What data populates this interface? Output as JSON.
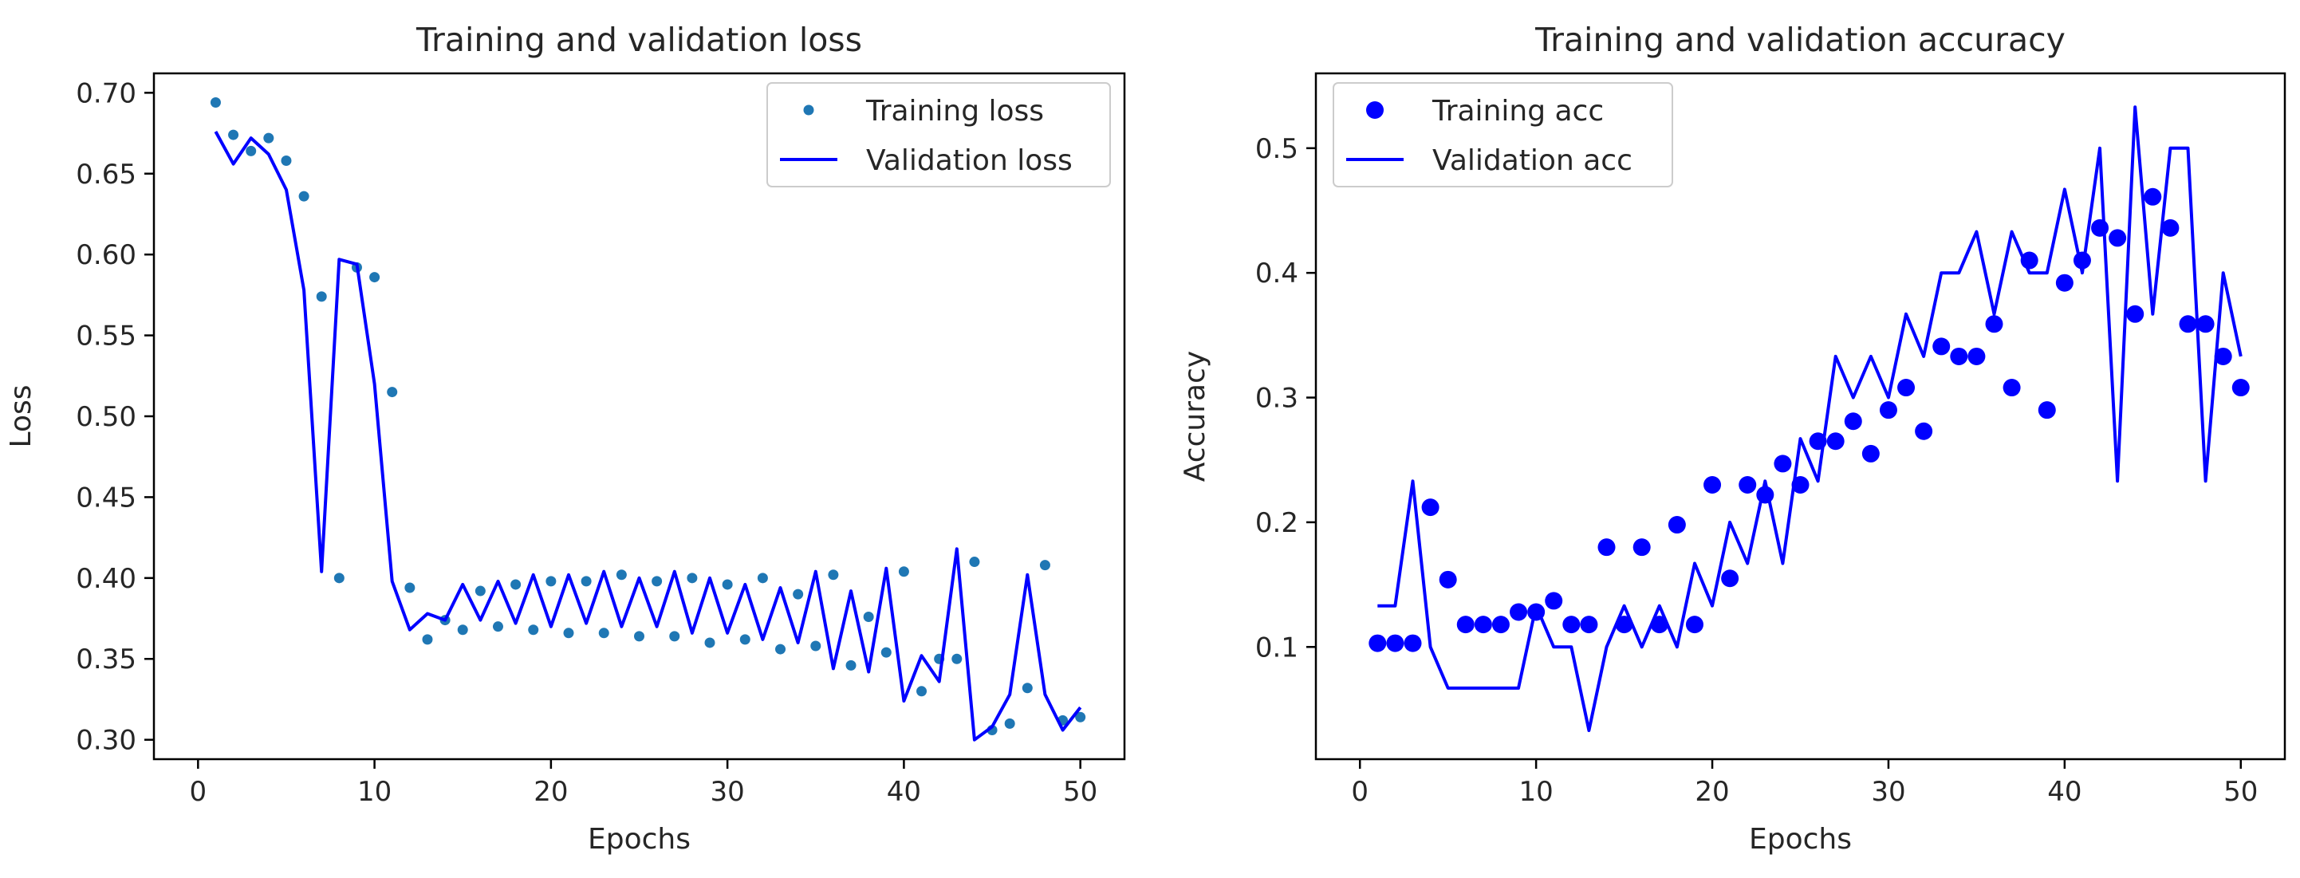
{
  "chart_data": [
    {
      "type": "line",
      "title": "Training and validation loss",
      "xlabel": "Epochs",
      "ylabel": "Loss",
      "xlim": [
        -2.5,
        52.5
      ],
      "ylim": [
        0.288,
        0.712
      ],
      "xticks": [
        0,
        10,
        20,
        30,
        40,
        50
      ],
      "xtick_labels": [
        "0",
        "10",
        "20",
        "30",
        "40",
        "50"
      ],
      "yticks": [
        0.3,
        0.35,
        0.4,
        0.45,
        0.5,
        0.55,
        0.6,
        0.65,
        0.7
      ],
      "ytick_labels": [
        "0.30",
        "0.35",
        "0.40",
        "0.45",
        "0.50",
        "0.55",
        "0.60",
        "0.65",
        "0.70"
      ],
      "grid": false,
      "legend_position": "upper right",
      "series": [
        {
          "name": "Training loss",
          "style": "markers",
          "marker_size": "small",
          "color": "#1f77b4",
          "x": [
            1,
            2,
            3,
            4,
            5,
            6,
            7,
            8,
            9,
            10,
            11,
            12,
            13,
            14,
            15,
            16,
            17,
            18,
            19,
            20,
            21,
            22,
            23,
            24,
            25,
            26,
            27,
            28,
            29,
            30,
            31,
            32,
            33,
            34,
            35,
            36,
            37,
            38,
            39,
            40,
            41,
            42,
            43,
            44,
            45,
            46,
            47,
            48,
            49,
            50
          ],
          "values": [
            0.694,
            0.674,
            0.664,
            0.672,
            0.658,
            0.636,
            0.574,
            0.4,
            0.592,
            0.586,
            0.515,
            0.394,
            0.362,
            0.374,
            0.368,
            0.392,
            0.37,
            0.396,
            0.368,
            0.398,
            0.366,
            0.398,
            0.366,
            0.402,
            0.364,
            0.398,
            0.364,
            0.4,
            0.36,
            0.396,
            0.362,
            0.4,
            0.356,
            0.39,
            0.358,
            0.402,
            0.346,
            0.376,
            0.354,
            0.404,
            0.33,
            0.35,
            0.35,
            0.41,
            0.306,
            0.31,
            0.332,
            0.408,
            0.312,
            0.314
          ]
        },
        {
          "name": "Validation loss",
          "style": "line",
          "color": "#0000ff",
          "x": [
            1,
            2,
            3,
            4,
            5,
            6,
            7,
            8,
            9,
            10,
            11,
            12,
            13,
            14,
            15,
            16,
            17,
            18,
            19,
            20,
            21,
            22,
            23,
            24,
            25,
            26,
            27,
            28,
            29,
            30,
            31,
            32,
            33,
            34,
            35,
            36,
            37,
            38,
            39,
            40,
            41,
            42,
            43,
            44,
            45,
            46,
            47,
            48,
            49,
            50
          ],
          "values": [
            0.676,
            0.656,
            0.672,
            0.662,
            0.64,
            0.578,
            0.404,
            0.597,
            0.594,
            0.52,
            0.398,
            0.368,
            0.378,
            0.374,
            0.396,
            0.374,
            0.398,
            0.372,
            0.402,
            0.37,
            0.402,
            0.372,
            0.404,
            0.37,
            0.4,
            0.37,
            0.404,
            0.366,
            0.4,
            0.366,
            0.396,
            0.362,
            0.394,
            0.36,
            0.404,
            0.344,
            0.392,
            0.342,
            0.406,
            0.324,
            0.352,
            0.336,
            0.418,
            0.3,
            0.308,
            0.328,
            0.402,
            0.328,
            0.306,
            0.32
          ]
        }
      ]
    },
    {
      "type": "line",
      "title": "Training and validation accuracy",
      "xlabel": "Epochs",
      "ylabel": "Accuracy",
      "xlim": [
        -2.5,
        52.5
      ],
      "ylim": [
        0.01,
        0.56
      ],
      "xticks": [
        0,
        10,
        20,
        30,
        40,
        50
      ],
      "xtick_labels": [
        "0",
        "10",
        "20",
        "30",
        "40",
        "50"
      ],
      "yticks": [
        0.1,
        0.2,
        0.3,
        0.4,
        0.5
      ],
      "ytick_labels": [
        "0.1",
        "0.2",
        "0.3",
        "0.4",
        "0.5"
      ],
      "grid": false,
      "legend_position": "upper left",
      "series": [
        {
          "name": "Training acc",
          "style": "markers",
          "marker_size": "large",
          "color": "#0000ff",
          "x": [
            1,
            2,
            3,
            4,
            5,
            6,
            7,
            8,
            9,
            10,
            11,
            12,
            13,
            14,
            15,
            16,
            17,
            18,
            19,
            20,
            21,
            22,
            23,
            24,
            25,
            26,
            27,
            28,
            29,
            30,
            31,
            32,
            33,
            34,
            35,
            36,
            37,
            38,
            39,
            40,
            41,
            42,
            43,
            44,
            45,
            46,
            47,
            48,
            49,
            50
          ],
          "values": [
            0.103,
            0.103,
            0.103,
            0.212,
            0.154,
            0.118,
            0.118,
            0.118,
            0.128,
            0.128,
            0.137,
            0.118,
            0.118,
            0.18,
            0.118,
            0.18,
            0.118,
            0.198,
            0.118,
            0.23,
            0.155,
            0.23,
            0.222,
            0.247,
            0.23,
            0.265,
            0.265,
            0.281,
            0.255,
            0.29,
            0.308,
            0.273,
            0.341,
            0.333,
            0.333,
            0.359,
            0.308,
            0.41,
            0.29,
            0.392,
            0.41,
            0.436,
            0.428,
            0.367,
            0.461,
            0.436,
            0.359,
            0.359,
            0.333,
            0.308
          ]
        },
        {
          "name": "Validation acc",
          "style": "line",
          "color": "#0000ff",
          "x": [
            1,
            2,
            3,
            4,
            5,
            6,
            7,
            8,
            9,
            10,
            11,
            12,
            13,
            14,
            15,
            16,
            17,
            18,
            19,
            20,
            21,
            22,
            23,
            24,
            25,
            26,
            27,
            28,
            29,
            30,
            31,
            32,
            33,
            34,
            35,
            36,
            37,
            38,
            39,
            40,
            41,
            42,
            43,
            44,
            45,
            46,
            47,
            48,
            49,
            50
          ],
          "values": [
            0.133,
            0.133,
            0.233,
            0.1,
            0.067,
            0.067,
            0.067,
            0.067,
            0.067,
            0.133,
            0.1,
            0.1,
            0.033,
            0.1,
            0.133,
            0.1,
            0.133,
            0.1,
            0.167,
            0.133,
            0.2,
            0.167,
            0.233,
            0.167,
            0.267,
            0.233,
            0.333,
            0.3,
            0.333,
            0.3,
            0.367,
            0.333,
            0.4,
            0.4,
            0.433,
            0.367,
            0.433,
            0.4,
            0.4,
            0.467,
            0.4,
            0.5,
            0.233,
            0.533,
            0.367,
            0.5,
            0.5,
            0.233,
            0.4,
            0.333
          ]
        }
      ]
    }
  ]
}
